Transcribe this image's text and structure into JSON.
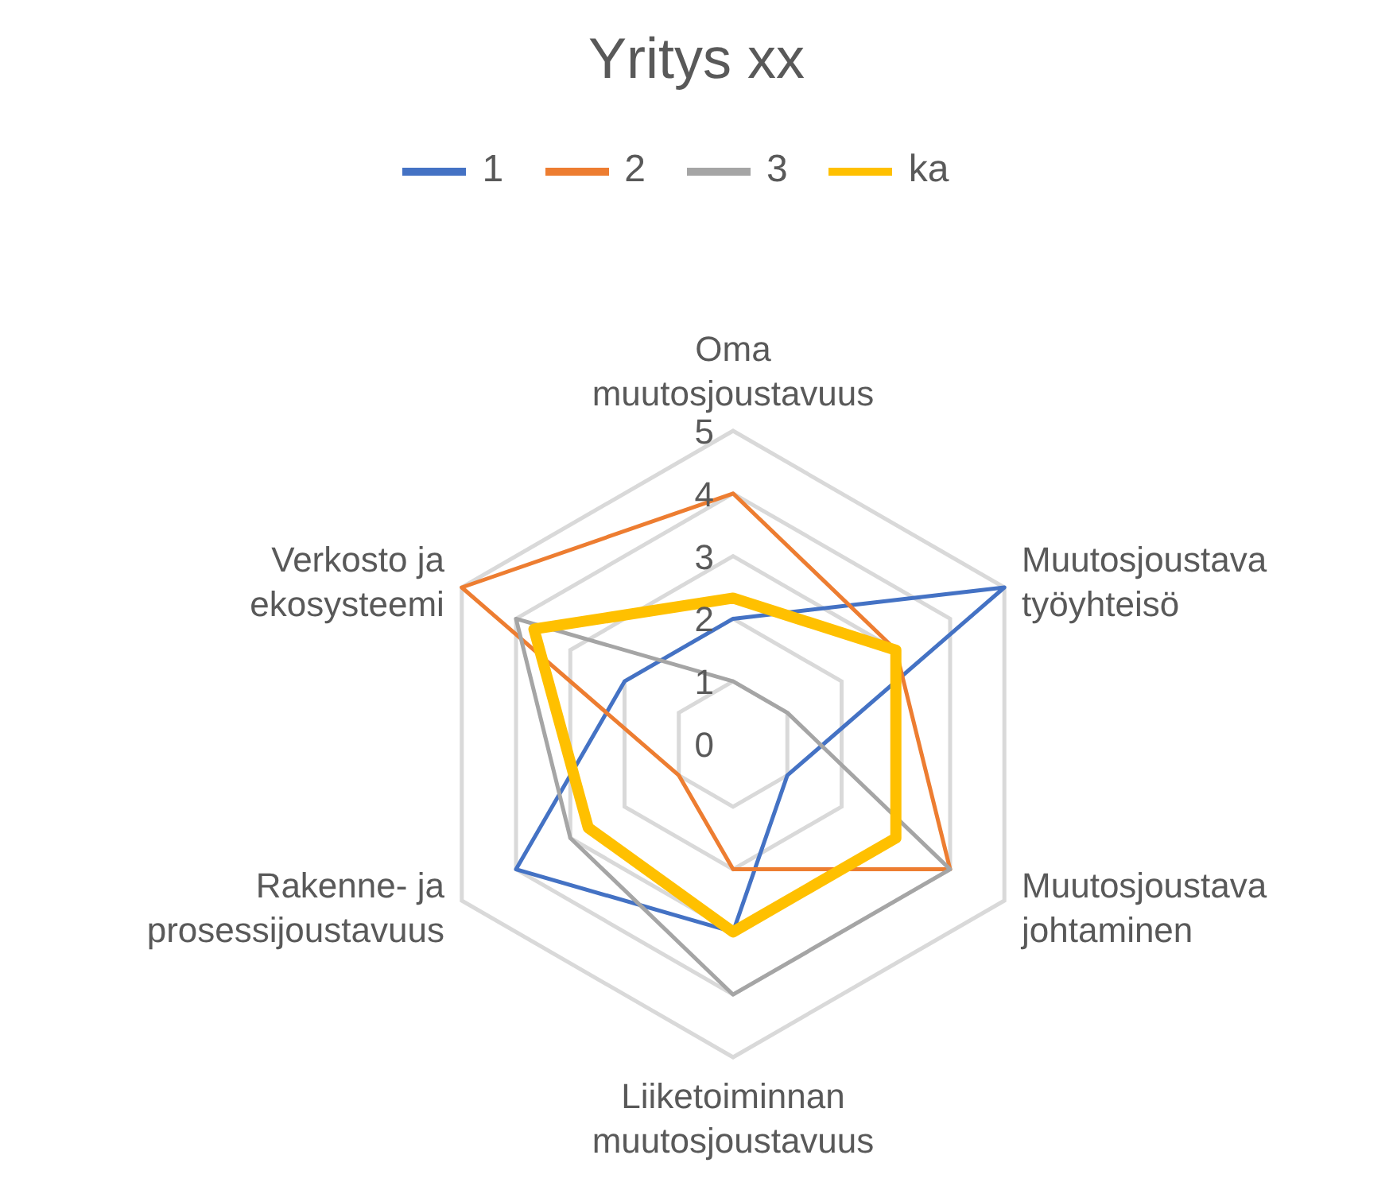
{
  "chart_data": {
    "type": "radar",
    "title": "Yritys xx",
    "categories": [
      "Oma muutosjoustavuus",
      "Muutosjoustava työyhteisö",
      "Muutosjoustava johtaminen",
      "Liiketoiminnan muutosjoustavuus",
      "Rakenne- ja prosessijoustavuus",
      "Verkosto ja ekosysteemi"
    ],
    "series": [
      {
        "name": "1",
        "color": "#4472c4",
        "values": [
          2,
          5,
          1,
          3,
          4,
          2
        ]
      },
      {
        "name": "2",
        "color": "#ed7d31",
        "values": [
          4,
          3,
          4,
          2,
          1,
          5
        ]
      },
      {
        "name": "3",
        "color": "#a5a5a5",
        "values": [
          1,
          1,
          4,
          4,
          3,
          4
        ]
      },
      {
        "name": "ka",
        "color": "#ffc000",
        "values": [
          2.33,
          3,
          3,
          3,
          2.67,
          3.67
        ]
      }
    ],
    "ylim": [
      0,
      5
    ],
    "yticks": [
      0,
      1,
      2,
      3,
      4,
      5
    ],
    "grid": true,
    "legend": "top",
    "marker": "none",
    "line_style": "solid"
  }
}
